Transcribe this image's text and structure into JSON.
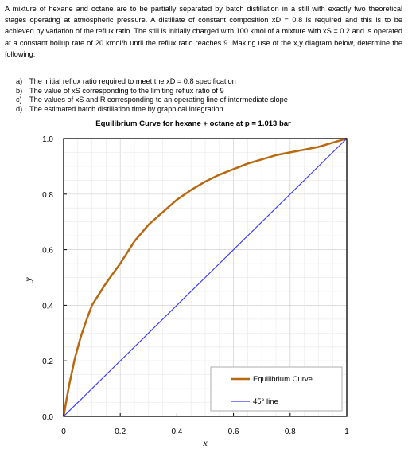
{
  "problem": {
    "statement": "A mixture of hexane and octane are to be partially separated by batch distillation in a still with exactly two theoretical stages operating at atmospheric pressure. A distillate of constant composition xD = 0.8 is required and this is to be achieved by variation of the reflux ratio. The still is initially charged with 100 kmol of a mixture with xS = 0.2 and is operated at a constant boilup rate of 20 kmol/h until the reflux ratio reaches 9. Making use of the x,y diagram below, determine the following:",
    "parts": [
      {
        "letter": "a)",
        "text": "The initial reflux ratio required to meet the xD = 0.8 specification"
      },
      {
        "letter": "b)",
        "text": "The value of xS corresponding to the limiting reflux ratio of 9"
      },
      {
        "letter": "c)",
        "text": "The values of xS and R corresponding to an operating line of intermediate slope"
      },
      {
        "letter": "d)",
        "text": "The estimated batch distillation time by graphical integration"
      }
    ]
  },
  "chart_data": {
    "type": "line",
    "title": "Equilibrium Curve for hexane + octane at p = 1.013 bar",
    "xlabel": "x",
    "ylabel": "y",
    "xlim": [
      0,
      1
    ],
    "ylim": [
      0,
      1
    ],
    "x_ticks": [
      "0",
      "0.2",
      "0.4",
      "0.6",
      "0.8",
      "1"
    ],
    "y_ticks": [
      "0.0",
      "0.2",
      "0.4",
      "0.6",
      "0.8",
      "1.0"
    ],
    "grid": true,
    "legend_position": "bottom-right",
    "series": [
      {
        "name": "Equilibrium Curve",
        "color": "#b8690f",
        "x": [
          0,
          0.01,
          0.02,
          0.04,
          0.06,
          0.08,
          0.1,
          0.15,
          0.2,
          0.25,
          0.3,
          0.35,
          0.4,
          0.45,
          0.5,
          0.55,
          0.6,
          0.65,
          0.7,
          0.75,
          0.8,
          0.85,
          0.9,
          0.95,
          1.0
        ],
        "y": [
          0,
          0.06,
          0.115,
          0.21,
          0.285,
          0.345,
          0.4,
          0.48,
          0.55,
          0.63,
          0.69,
          0.735,
          0.78,
          0.815,
          0.845,
          0.87,
          0.89,
          0.91,
          0.925,
          0.94,
          0.95,
          0.96,
          0.97,
          0.985,
          1.0
        ]
      },
      {
        "name": "45° line",
        "color": "#3a3aff",
        "x": [
          0,
          1
        ],
        "y": [
          0,
          1
        ]
      }
    ]
  }
}
